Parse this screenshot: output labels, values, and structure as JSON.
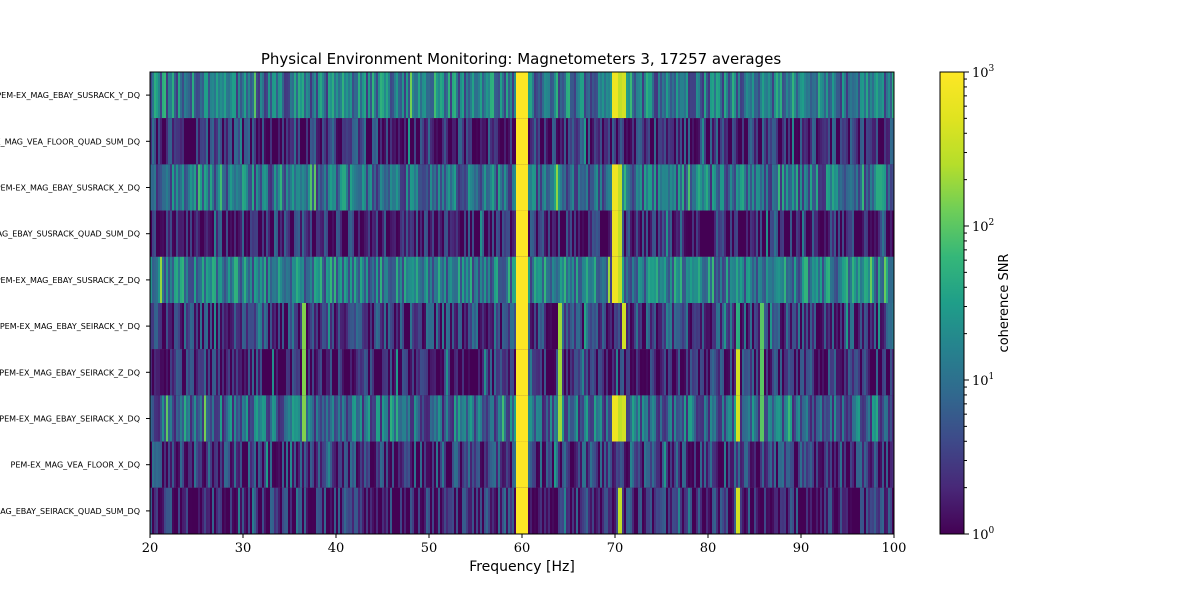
{
  "chart_data": {
    "type": "heatmap",
    "title": "Physical Environment Monitoring: Magnetometers 3, 17257 averages",
    "xlabel": "Frequency [Hz]",
    "ylabel": "",
    "xlim": [
      20,
      100
    ],
    "x_ticks": [
      20,
      30,
      40,
      50,
      60,
      70,
      80,
      90,
      100
    ],
    "rows": [
      "PEM-EX_MAG_EBAY_SUSRACK_Y_DQ",
      "PEM-EX_MAG_VEA_FLOOR_QUAD_SUM_DQ",
      "PEM-EX_MAG_EBAY_SUSRACK_X_DQ",
      "PEM-EX_MAG_EBAY_SUSRACK_QUAD_SUM_DQ",
      "PEM-EX_MAG_EBAY_SUSRACK_Z_DQ",
      "PEM-EX_MAG_EBAY_SEIRACK_Y_DQ",
      "PEM-EX_MAG_EBAY_SEIRACK_Z_DQ",
      "PEM-EX_MAG_EBAY_SEIRACK_X_DQ",
      "PEM-EX_MAG_VEA_FLOOR_X_DQ",
      "PEM-EX_MAG_EBAY_SEIRACK_QUAD_SUM_DQ"
    ],
    "row_baseline_snr": [
      12,
      2,
      10,
      1.6,
      14,
      3,
      1.8,
      8,
      2.5,
      1.8
    ],
    "lines": [
      {
        "freq": 60,
        "width_hz": 1.2,
        "snr": 1000,
        "rows": "all"
      },
      {
        "freq": 70,
        "snr": 700,
        "rows": [
          0,
          2,
          3,
          4,
          7
        ]
      },
      {
        "freq": 70.5,
        "snr": 300,
        "rows": [
          0,
          2,
          3,
          4,
          7,
          9
        ]
      },
      {
        "freq": 71,
        "snr": 400,
        "rows": [
          0,
          5,
          7
        ]
      },
      {
        "freq": 64,
        "snr": 200,
        "rows": [
          5,
          6,
          7
        ]
      },
      {
        "freq": 36.5,
        "snr": 150,
        "rows": [
          5,
          6,
          7
        ]
      },
      {
        "freq": 83.3,
        "snr": 400,
        "rows": [
          6,
          7,
          9
        ]
      },
      {
        "freq": 85.8,
        "snr": 100,
        "rows": [
          5,
          6,
          7
        ]
      }
    ],
    "colorbar": {
      "label": "coherence SNR",
      "scale": "log",
      "range": [
        1,
        1000
      ],
      "ticks": [
        {
          "value": 1,
          "mantissa": "10",
          "exponent": "0"
        },
        {
          "value": 10,
          "mantissa": "10",
          "exponent": "1"
        },
        {
          "value": 100,
          "mantissa": "10",
          "exponent": "2"
        },
        {
          "value": 1000,
          "mantissa": "10",
          "exponent": "3"
        }
      ],
      "colormap": "viridis"
    },
    "grid": false
  },
  "tick_labels_x": [
    "20",
    "30",
    "40",
    "50",
    "60",
    "70",
    "80",
    "90",
    "100"
  ]
}
